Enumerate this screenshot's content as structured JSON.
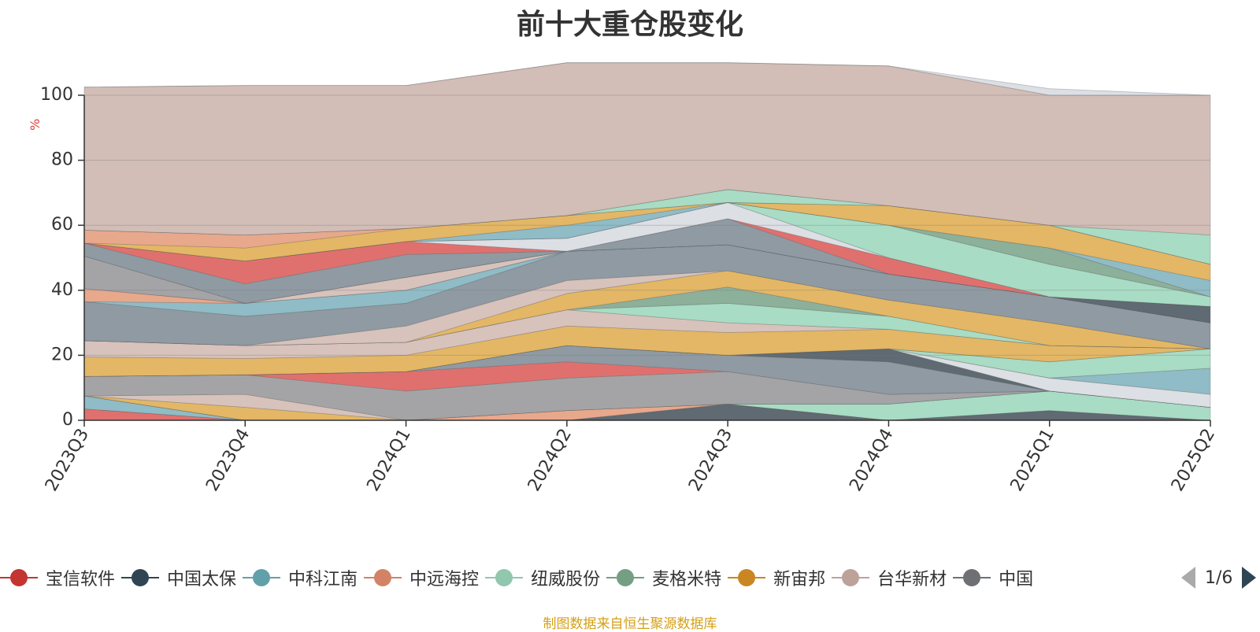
{
  "chart_data": {
    "type": "area",
    "title": "前十大重仓股变化",
    "ylabel": "%",
    "ylim": [
      0,
      100
    ],
    "y_ticks": [
      "0",
      "20",
      "40",
      "60",
      "80",
      "100"
    ],
    "categories": [
      "2023Q3",
      "2023Q4",
      "2024Q1",
      "2024Q2",
      "2024Q3",
      "2024Q4",
      "2025Q1",
      "2025Q2"
    ],
    "layers": [
      {
        "color": "#e0706e",
        "values": [
          3.5,
          0,
          0,
          0,
          0,
          0,
          0,
          0
        ]
      },
      {
        "color": "#5f6a72",
        "values": [
          0,
          0,
          0,
          0,
          5,
          0,
          3,
          0
        ]
      },
      {
        "color": "#8fbcc6",
        "values": [
          4,
          0,
          0,
          0,
          0,
          0,
          0,
          0
        ]
      },
      {
        "color": "#e8a88c",
        "values": [
          0,
          0,
          0,
          3,
          0,
          0,
          0,
          0
        ]
      },
      {
        "color": "#a8dcc4",
        "values": [
          0,
          0,
          0,
          0,
          0,
          5,
          6,
          4
        ]
      },
      {
        "color": "#e3b765",
        "values": [
          0,
          4,
          0,
          0,
          0,
          0,
          0,
          0
        ]
      },
      {
        "color": "#d7c2bc",
        "values": [
          0,
          4,
          0,
          0,
          0,
          0,
          0,
          0
        ]
      },
      {
        "color": "#a4a4a6",
        "values": [
          6,
          6,
          9,
          10,
          10,
          3,
          0,
          0
        ]
      },
      {
        "color": "#e0706e",
        "values": [
          0,
          0,
          6,
          5,
          0,
          0,
          0,
          0
        ]
      },
      {
        "color": "#8f9aa3",
        "values": [
          0,
          0,
          0,
          5,
          5,
          10,
          0,
          0
        ]
      },
      {
        "color": "#5f6a72",
        "values": [
          0,
          0,
          0,
          0,
          0,
          4,
          0,
          0
        ]
      },
      {
        "color": "#dcdfe4",
        "values": [
          0,
          0,
          0,
          0,
          0,
          0,
          4,
          4
        ]
      },
      {
        "color": "#8fbcc6",
        "values": [
          0,
          0,
          0,
          0,
          0,
          0,
          0,
          8
        ]
      },
      {
        "color": "#a8dcc4",
        "values": [
          0,
          0,
          0,
          0,
          0,
          0,
          5,
          6
        ]
      },
      {
        "color": "#e0706e",
        "values": [
          0,
          0,
          0,
          0,
          0,
          0,
          0,
          0
        ]
      },
      {
        "color": "#e3b765",
        "values": [
          6,
          5,
          5,
          6,
          7,
          6,
          5,
          0
        ]
      },
      {
        "color": "#d7c2bc",
        "values": [
          5,
          4,
          4,
          5,
          3,
          0,
          0,
          0
        ]
      },
      {
        "color": "#a8dcc4",
        "values": [
          0,
          0,
          0,
          0,
          6,
          4,
          0,
          0
        ]
      },
      {
        "color": "#8cb09a",
        "values": [
          0,
          0,
          0,
          0,
          5,
          0,
          0,
          0
        ]
      },
      {
        "color": "#e3b765",
        "values": [
          0,
          0,
          0,
          5,
          5,
          5,
          7,
          0
        ]
      },
      {
        "color": "#d7c2bc",
        "values": [
          0,
          0,
          5,
          4,
          0,
          0,
          0,
          0
        ]
      },
      {
        "color": "#8f9aa3",
        "values": [
          12,
          9,
          7,
          9,
          8,
          8,
          8,
          8
        ]
      },
      {
        "color": "#8fbcc6",
        "values": [
          0,
          4,
          4,
          0,
          0,
          0,
          0,
          0
        ]
      },
      {
        "color": "#e8a88c",
        "values": [
          4,
          0,
          0,
          0,
          0,
          0,
          0,
          0
        ]
      },
      {
        "color": "#d7c2bc",
        "values": [
          0,
          0,
          4,
          0,
          0,
          0,
          0,
          0
        ]
      },
      {
        "color": "#a4a4a6",
        "values": [
          10,
          0,
          0,
          0,
          0,
          0,
          0,
          0
        ]
      },
      {
        "color": "#5f6a72",
        "values": [
          0,
          0,
          0,
          0,
          0,
          0,
          0,
          5
        ]
      },
      {
        "color": "#8f9aa3",
        "values": [
          4,
          6,
          7,
          0,
          8,
          0,
          0,
          0
        ]
      },
      {
        "color": "#e0706e",
        "values": [
          0,
          7,
          4,
          0,
          0,
          5,
          0,
          0
        ]
      },
      {
        "color": "#dcdfe4",
        "values": [
          0,
          0,
          0,
          4,
          5,
          0,
          0,
          0
        ]
      },
      {
        "color": "#a8dcc4",
        "values": [
          0,
          0,
          0,
          0,
          0,
          10,
          10,
          3
        ]
      },
      {
        "color": "#8cb09a",
        "values": [
          0,
          0,
          0,
          0,
          0,
          0,
          5,
          0
        ]
      },
      {
        "color": "#8fbcc6",
        "values": [
          0,
          0,
          0,
          4,
          0,
          0,
          0,
          5
        ]
      },
      {
        "color": "#e3b765",
        "values": [
          0,
          4,
          4,
          3,
          0,
          6,
          7,
          5
        ]
      },
      {
        "color": "#e8a88c",
        "values": [
          4,
          4,
          0,
          0,
          0,
          0,
          0,
          0
        ]
      },
      {
        "color": "#a8dcc4",
        "values": [
          0,
          0,
          0,
          0,
          4,
          0,
          0,
          0
        ]
      },
      {
        "color": "#a8dcc4",
        "values": [
          0,
          0,
          0,
          0,
          0,
          0,
          0,
          9
        ]
      },
      {
        "color": "#d2bdb7",
        "values": [
          44,
          46,
          44,
          47,
          39,
          43,
          40,
          43
        ]
      },
      {
        "color": "#dcdfe4",
        "values": [
          0,
          0,
          0,
          0,
          0,
          0,
          2,
          0
        ]
      }
    ],
    "legend": [
      {
        "name": "宝信软件",
        "color": "#c23531"
      },
      {
        "name": "中国太保",
        "color": "#2f4554"
      },
      {
        "name": "中科江南",
        "color": "#61a0a8"
      },
      {
        "name": "中远海控",
        "color": "#d48265"
      },
      {
        "name": "纽威股份",
        "color": "#91c7ae"
      },
      {
        "name": "麦格米特",
        "color": "#749f83"
      },
      {
        "name": "新宙邦",
        "color": "#ca8622"
      },
      {
        "name": "台华新材",
        "color": "#bda29a"
      },
      {
        "name": "中国",
        "color": "#6e7074"
      }
    ],
    "legend_page": "1/6"
  },
  "footer": "制图数据来自恒生聚源数据库"
}
